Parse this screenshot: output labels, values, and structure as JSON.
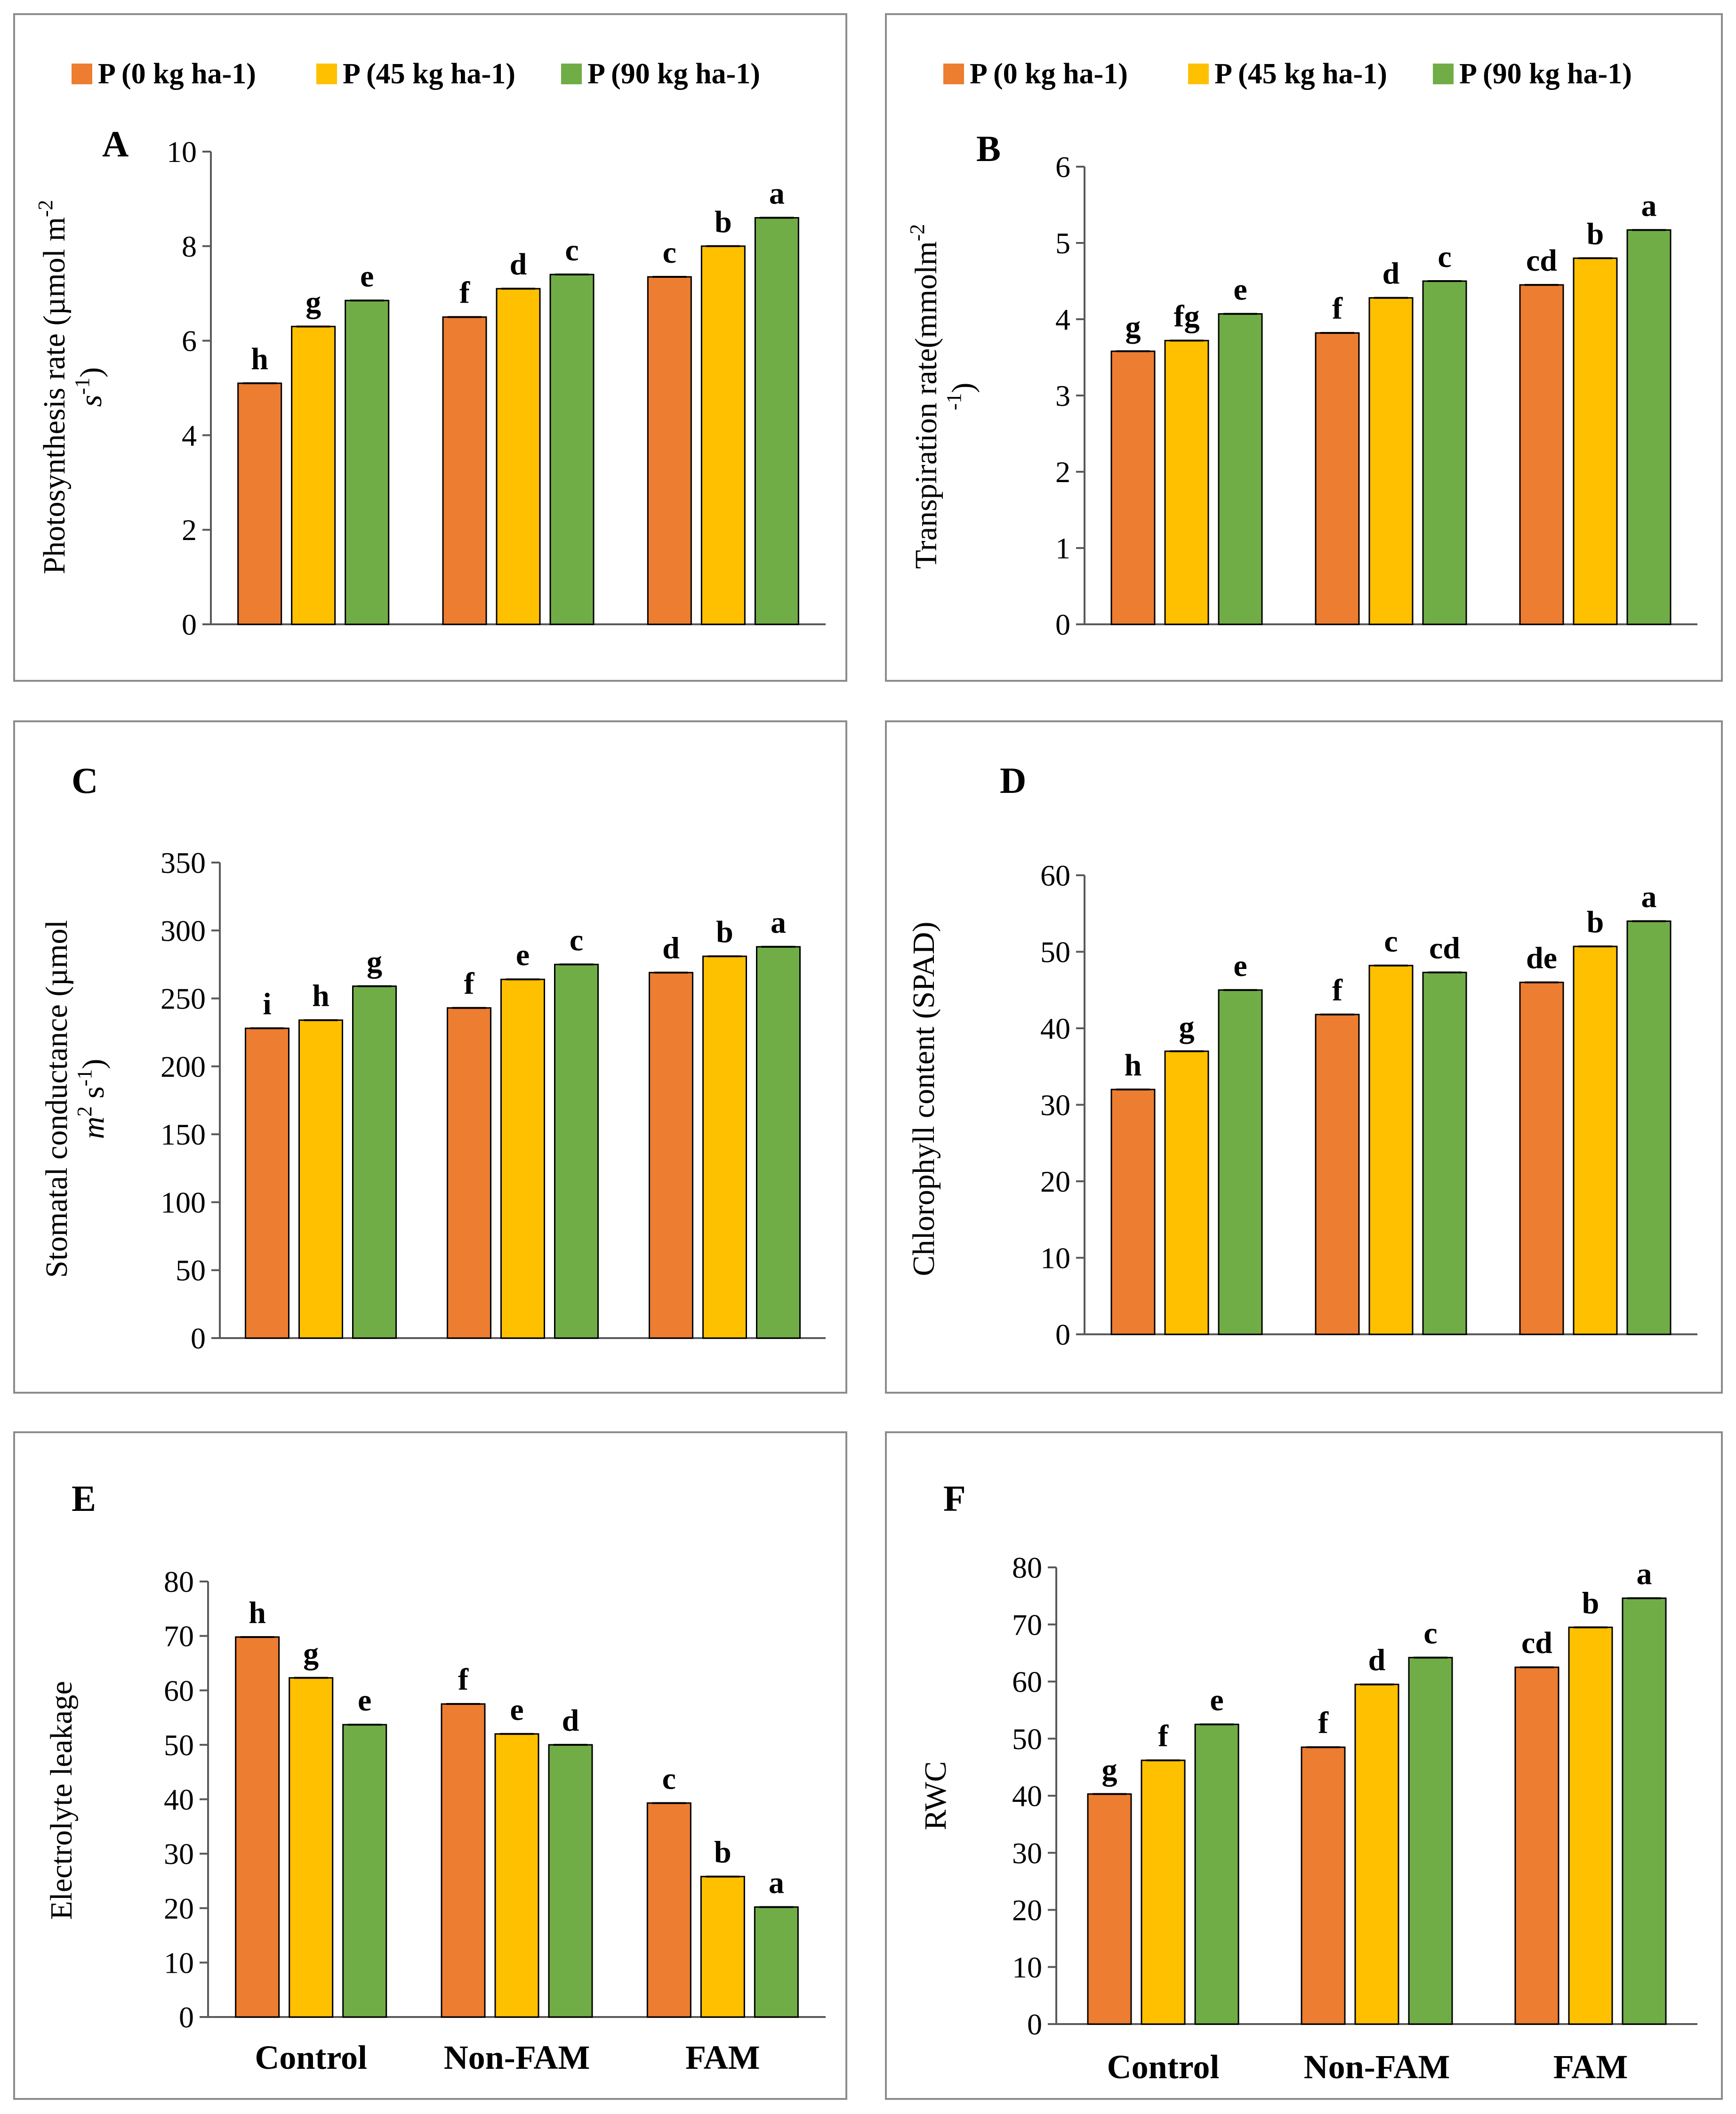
{
  "legend": [
    {
      "label": "P (0 kg ha-1)",
      "color": "#ED7D31"
    },
    {
      "label": "P (45 kg ha-1)",
      "color": "#FFC000"
    },
    {
      "label": "P (90 kg ha-1)",
      "color": "#70AD47"
    }
  ],
  "chart_data": [
    {
      "panel": "A",
      "type": "bar",
      "ylabel_main": "Photosynthesis rate (µmol m",
      "ylabel_sup": "-2",
      "ylabel_line2_a": "s",
      "ylabel_line2_sup": "-1",
      "ylabel_line2_b": ")",
      "ylim": [
        0,
        10
      ],
      "yticks": [
        0,
        2,
        4,
        6,
        8,
        10
      ],
      "categories": [
        "Control",
        "Non-FAM",
        "FAM"
      ],
      "show_categories": false,
      "series": [
        {
          "name": "P (0 kg ha-1)",
          "values": [
            5.1,
            6.5,
            7.35
          ],
          "letters": [
            "h",
            "f",
            "c"
          ]
        },
        {
          "name": "P (45 kg ha-1)",
          "values": [
            6.3,
            7.1,
            8.0
          ],
          "letters": [
            "g",
            "d",
            "b"
          ]
        },
        {
          "name": "P (90 kg ha-1)",
          "values": [
            6.85,
            7.4,
            8.6
          ],
          "letters": [
            "e",
            "c",
            "a"
          ]
        }
      ]
    },
    {
      "panel": "B",
      "type": "bar",
      "ylabel_main": "Transpiration rate(mmolm",
      "ylabel_sup": "-2",
      "ylabel_line2_a": "",
      "ylabel_line2_sup": "-1",
      "ylabel_line2_b": ")",
      "ylim": [
        0,
        6
      ],
      "yticks": [
        0,
        1,
        2,
        3,
        4,
        5,
        6
      ],
      "categories": [
        "Control",
        "Non-FAM",
        "FAM"
      ],
      "show_categories": false,
      "series": [
        {
          "name": "P (0 kg ha-1)",
          "values": [
            3.58,
            3.82,
            4.45
          ],
          "letters": [
            "g",
            "f",
            "cd"
          ]
        },
        {
          "name": "P (45 kg ha-1)",
          "values": [
            3.72,
            4.28,
            4.8
          ],
          "letters": [
            "fg",
            "d",
            "b"
          ]
        },
        {
          "name": "P (90 kg ha-1)",
          "values": [
            4.07,
            4.5,
            5.17
          ],
          "letters": [
            "e",
            "c",
            "a"
          ]
        }
      ]
    },
    {
      "panel": "C",
      "type": "bar",
      "ylabel_main": "Stomatal conductance (µmol",
      "ylabel_sup": "",
      "ylabel_line2_a": "m",
      "ylabel_line2_sup2": "2",
      "ylabel_line2_mid": " s",
      "ylabel_line2_sup": "-1",
      "ylabel_line2_b": ")",
      "ylim": [
        0,
        350
      ],
      "yticks": [
        0,
        50,
        100,
        150,
        200,
        250,
        300,
        350
      ],
      "categories": [
        "Control",
        "Non-FAM",
        "FAM"
      ],
      "show_categories": false,
      "series": [
        {
          "name": "P (0 kg ha-1)",
          "values": [
            228,
            243,
            269
          ],
          "letters": [
            "i",
            "f",
            "d"
          ]
        },
        {
          "name": "P (45 kg ha-1)",
          "values": [
            234,
            264,
            281
          ],
          "letters": [
            "h",
            "e",
            "b"
          ]
        },
        {
          "name": "P (90 kg ha-1)",
          "values": [
            259,
            275,
            288
          ],
          "letters": [
            "g",
            "c",
            "a"
          ]
        }
      ]
    },
    {
      "panel": "D",
      "type": "bar",
      "ylabel_main": "Chlorophyll content (SPAD)",
      "ylim": [
        0,
        60
      ],
      "yticks": [
        0,
        10,
        20,
        30,
        40,
        50,
        60
      ],
      "categories": [
        "Control",
        "Non-FAM",
        "FAM"
      ],
      "show_categories": false,
      "series": [
        {
          "name": "P (0 kg ha-1)",
          "values": [
            32,
            41.8,
            46
          ],
          "letters": [
            "h",
            "f",
            "de"
          ]
        },
        {
          "name": "P (45 kg ha-1)",
          "values": [
            37,
            48.2,
            50.7
          ],
          "letters": [
            "g",
            "c",
            "b"
          ]
        },
        {
          "name": "P (90 kg ha-1)",
          "values": [
            45,
            47.3,
            54
          ],
          "letters": [
            "e",
            "cd",
            "a"
          ]
        }
      ]
    },
    {
      "panel": "E",
      "type": "bar",
      "ylabel_main": "Electrolyte leakage",
      "ylim": [
        0,
        80
      ],
      "yticks": [
        0,
        10,
        20,
        30,
        40,
        50,
        60,
        70,
        80
      ],
      "categories": [
        "Control",
        "Non-FAM",
        "FAM"
      ],
      "show_categories": true,
      "series": [
        {
          "name": "P (0 kg ha-1)",
          "values": [
            69.8,
            57.5,
            39.3
          ],
          "letters": [
            "h",
            "f",
            "c"
          ]
        },
        {
          "name": "P (45 kg ha-1)",
          "values": [
            62.3,
            52,
            25.8
          ],
          "letters": [
            "g",
            "e",
            "b"
          ]
        },
        {
          "name": "P (90 kg ha-1)",
          "values": [
            53.7,
            50,
            20.2
          ],
          "letters": [
            "e",
            "d",
            "a"
          ]
        }
      ]
    },
    {
      "panel": "F",
      "type": "bar",
      "ylabel_main": "RWC",
      "ylim": [
        0,
        80
      ],
      "yticks": [
        0,
        10,
        20,
        30,
        40,
        50,
        60,
        70,
        80
      ],
      "categories": [
        "Control",
        "Non-FAM",
        "FAM"
      ],
      "show_categories": true,
      "series": [
        {
          "name": "P (0 kg ha-1)",
          "values": [
            40.3,
            48.5,
            62.5
          ],
          "letters": [
            "g",
            "f",
            "cd"
          ]
        },
        {
          "name": "P (45 kg ha-1)",
          "values": [
            46.2,
            59.5,
            69.5
          ],
          "letters": [
            "f",
            "d",
            "b"
          ]
        },
        {
          "name": "P (90 kg ha-1)",
          "values": [
            52.5,
            64.2,
            74.6
          ],
          "letters": [
            "e",
            "c",
            "a"
          ]
        }
      ]
    }
  ]
}
